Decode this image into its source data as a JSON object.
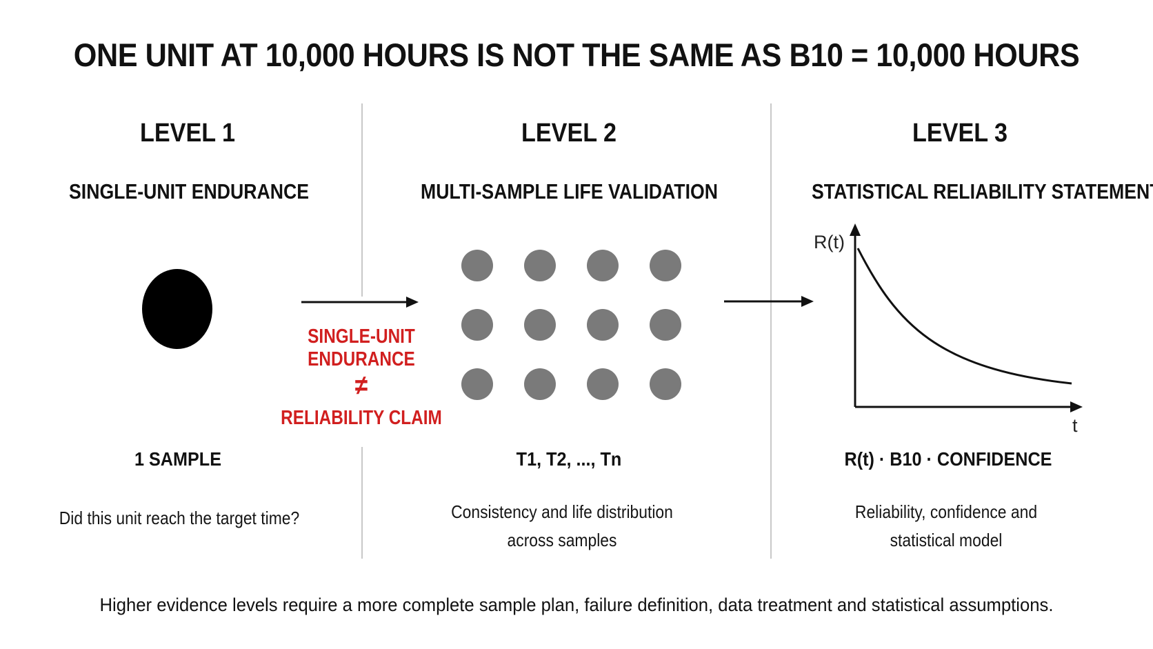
{
  "title": "ONE UNIT AT 10,000 HOURS IS NOT THE SAME AS B10 = 10,000 HOURS",
  "levels": [
    {
      "level": "LEVEL 1",
      "subtitle": "SINGLE-UNIT ENDURANCE",
      "stat": "1 SAMPLE",
      "description": [
        "Did this unit reach the target time?"
      ]
    },
    {
      "level": "LEVEL 2",
      "subtitle": "MULTI-SAMPLE LIFE VALIDATION",
      "stat": "T1, T2, ..., Tn",
      "description": [
        "Consistency and life distribution",
        "across samples"
      ]
    },
    {
      "level": "LEVEL 3",
      "subtitle": "STATISTICAL RELIABILITY STATEMENT",
      "stat": "R(t) · B10 · CONFIDENCE",
      "description": [
        "Reliability, confidence and",
        "statistical model"
      ]
    }
  ],
  "warning": {
    "line1": "SINGLE-UNIT",
    "line2": "ENDURANCE",
    "symbol": "≠",
    "line3": "RELIABILITY CLAIM",
    "color": "#d11f1f"
  },
  "chart": {
    "ylabel": "R(t)",
    "xlabel": "t"
  },
  "footer": "Higher evidence levels require a more complete sample plan, failure definition, data treatment and statistical assumptions.",
  "colors": {
    "sample_single": "#000000",
    "sample_multi": "#7a7a7a",
    "divider": "#c8c8c8"
  }
}
